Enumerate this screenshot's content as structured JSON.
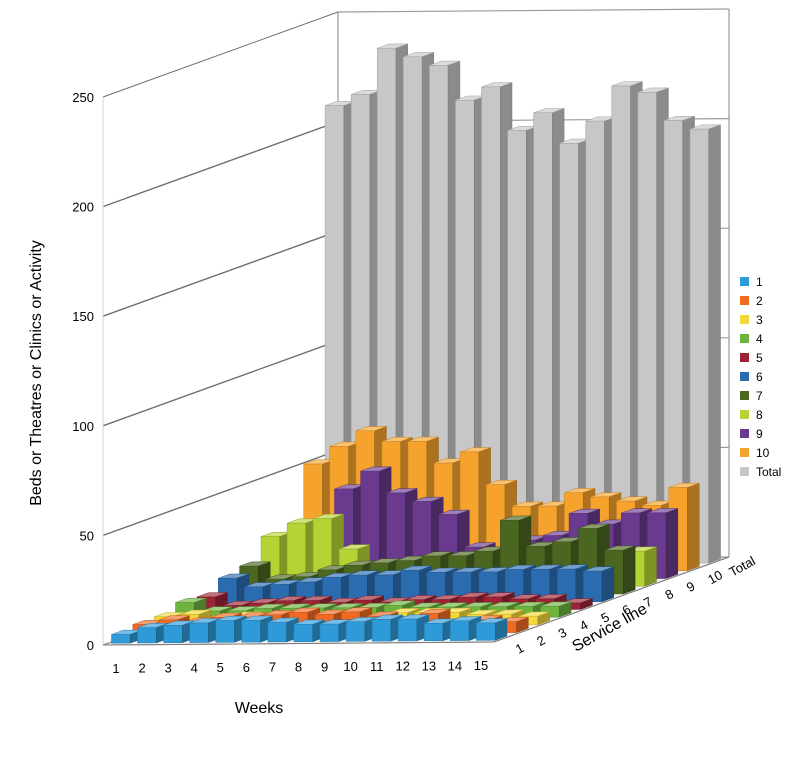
{
  "chart_data": {
    "type": "bar",
    "subtype": "3d-column",
    "title": "",
    "xlabel": "Weeks",
    "ylabel": "Beds or Theatres or Clinics or Activity",
    "zlabel": "Service line",
    "ylim": [
      0,
      250
    ],
    "yticks": [
      "0",
      "50",
      "100",
      "150",
      "200",
      "250"
    ],
    "categories": [
      "1",
      "2",
      "3",
      "4",
      "5",
      "6",
      "7",
      "8",
      "9",
      "10",
      "11",
      "12",
      "13",
      "14",
      "15"
    ],
    "depth_categories": [
      "1",
      "2",
      "3",
      "4",
      "5",
      "6",
      "7",
      "8",
      "9",
      "10",
      "Total"
    ],
    "depth_tick_labels": [
      "1",
      "2",
      "3",
      "4",
      "5",
      "6",
      "7",
      "8",
      "9",
      "10",
      "Total"
    ],
    "legend_position": "right",
    "gridlines": true,
    "series": [
      {
        "name": "1",
        "color": "#2f9ad8",
        "values": [
          4,
          7,
          8,
          9,
          10,
          10,
          9,
          8,
          8,
          9,
          10,
          10,
          8,
          9,
          8
        ]
      },
      {
        "name": "2",
        "color": "#f06a22",
        "values": [
          5,
          7,
          6,
          8,
          8,
          9,
          10,
          9,
          10,
          8,
          6,
          9,
          5,
          6,
          5
        ]
      },
      {
        "name": "3",
        "color": "#f2d83a",
        "values": [
          5,
          6,
          4,
          5,
          4,
          4,
          5,
          5,
          4,
          6,
          6,
          6,
          5,
          5,
          4
        ]
      },
      {
        "name": "4",
        "color": "#6db33f",
        "values": [
          8,
          4,
          4,
          5,
          5,
          5,
          5,
          5,
          6,
          5,
          5,
          5,
          5,
          5,
          5
        ]
      },
      {
        "name": "5",
        "color": "#9b2335",
        "values": [
          7,
          3,
          4,
          5,
          5,
          4,
          5,
          4,
          5,
          5,
          6,
          6,
          5,
          5,
          3
        ]
      },
      {
        "name": "6",
        "color": "#2b6cb0",
        "values": [
          12,
          8,
          9,
          10,
          12,
          13,
          13,
          15,
          14,
          14,
          14,
          15,
          15,
          15,
          14
        ]
      },
      {
        "name": "7",
        "color": "#4b6620",
        "values": [
          14,
          8,
          9,
          12,
          14,
          15,
          16,
          18,
          18,
          20,
          34,
          22,
          24,
          30,
          20
        ]
      },
      {
        "name": "8",
        "color": "#b5d334",
        "values": [
          24,
          30,
          32,
          18,
          10,
          8,
          8,
          10,
          8,
          15,
          5,
          8,
          5,
          8,
          16
        ]
      },
      {
        "name": "9",
        "color": "#6a3a8e",
        "values": [
          10,
          20,
          42,
          50,
          40,
          36,
          30,
          15,
          12,
          18,
          20,
          30,
          25,
          30,
          30
        ]
      },
      {
        "name": "10",
        "color": "#f5a32c",
        "values": [
          50,
          58,
          65,
          60,
          60,
          50,
          55,
          40,
          30,
          30,
          36,
          34,
          32,
          30,
          38
        ]
      },
      {
        "name": "Total",
        "color": "#c7c7c7",
        "values": [
          210,
          215,
          236,
          232,
          228,
          212,
          218,
          198,
          206,
          192,
          202,
          218,
          215,
          202,
          198
        ]
      }
    ]
  }
}
